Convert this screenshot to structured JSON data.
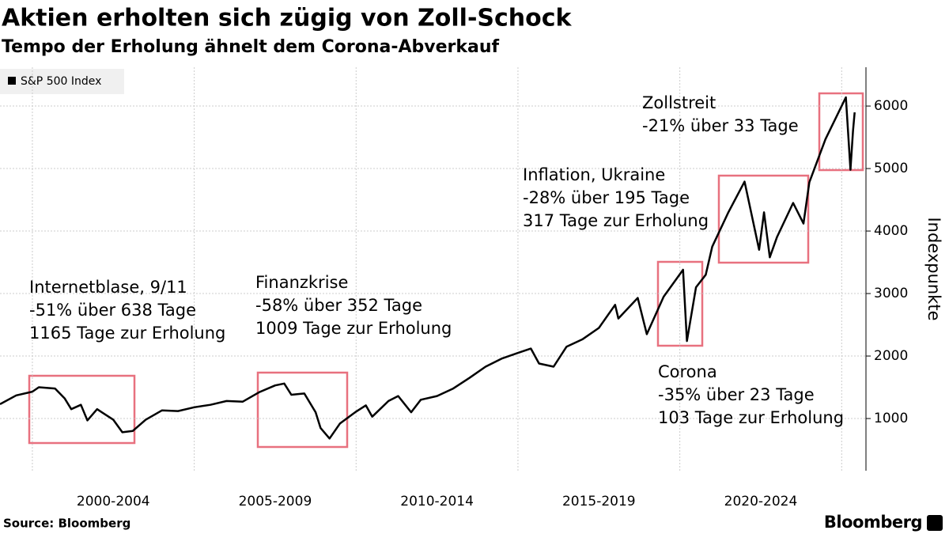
{
  "chart_data": {
    "type": "line",
    "title": "Aktien erholten sich zügig von Zoll-Schock",
    "subtitle": "Tempo der Erholung ähnelt dem Corona-Abverkauf",
    "y_label": "Indexpunkte",
    "source": "Source: Bloomberg",
    "brand": "Bloomberg",
    "legend": "top-left",
    "grid": true,
    "x": [
      1999.0,
      1999.5,
      2000.0,
      2000.2,
      2000.7,
      2001.0,
      2001.2,
      2001.5,
      2001.7,
      2002.0,
      2002.5,
      2002.78,
      2003.1,
      2003.5,
      2004.0,
      2004.5,
      2005.0,
      2005.5,
      2006.0,
      2006.5,
      2007.0,
      2007.5,
      2007.78,
      2008.0,
      2008.4,
      2008.75,
      2008.9,
      2009.18,
      2009.5,
      2010.0,
      2010.3,
      2010.5,
      2011.0,
      2011.3,
      2011.7,
      2012.0,
      2012.5,
      2013.0,
      2013.5,
      2014.0,
      2014.5,
      2015.0,
      2015.4,
      2015.65,
      2016.1,
      2016.5,
      2017.0,
      2017.5,
      2018.0,
      2018.1,
      2018.7,
      2018.98,
      2019.5,
      2020.1,
      2020.22,
      2020.5,
      2020.8,
      2021.0,
      2021.5,
      2022.0,
      2022.45,
      2022.6,
      2022.78,
      2023.0,
      2023.5,
      2023.82,
      2024.0,
      2024.5,
      2025.13,
      2025.27,
      2025.35,
      2025.4
    ],
    "series": [
      {
        "name": "S&P 500 Index",
        "color": "#000000",
        "values": [
          1230,
          1370,
          1430,
          1500,
          1480,
          1320,
          1150,
          1220,
          970,
          1150,
          980,
          780,
          800,
          980,
          1130,
          1120,
          1180,
          1220,
          1280,
          1270,
          1420,
          1530,
          1560,
          1380,
          1400,
          1100,
          850,
          680,
          920,
          1110,
          1210,
          1030,
          1280,
          1360,
          1100,
          1300,
          1360,
          1480,
          1650,
          1830,
          1960,
          2050,
          2120,
          1880,
          1830,
          2150,
          2270,
          2450,
          2820,
          2600,
          2930,
          2350,
          2950,
          3380,
          2240,
          3100,
          3300,
          3750,
          4300,
          4790,
          3700,
          4300,
          3580,
          3900,
          4450,
          4120,
          4780,
          5470,
          6140,
          4980,
          5600,
          5900
        ]
      }
    ],
    "xlim": [
      1999.0,
      2025.75
    ],
    "xgrid": [
      2000,
      2005,
      2010,
      2015,
      2020,
      2025
    ],
    "xticks": [
      {
        "value": 2002.5,
        "label": "2000-2004"
      },
      {
        "value": 2007.5,
        "label": "2005-2009"
      },
      {
        "value": 2012.5,
        "label": "2010-2014"
      },
      {
        "value": 2017.5,
        "label": "2015-2019"
      },
      {
        "value": 2022.5,
        "label": "2020-2024"
      }
    ],
    "ylim": [
      165,
      6621
    ],
    "yticks": [
      1000,
      2000,
      3000,
      4000,
      5000,
      6000
    ],
    "annotations": [
      {
        "lines": [
          "Internetblase, 9/11",
          "-51% über 638 Tage",
          "1165 Tage zur Erholung"
        ]
      },
      {
        "lines": [
          "Finanzkrise",
          "-58% über 352 Tage",
          "1009 Tage zur Erholung"
        ]
      },
      {
        "lines": [
          "Inflation, Ukraine",
          "-28% über 195 Tage",
          "317 Tage zur Erholung"
        ]
      },
      {
        "lines": [
          "Corona",
          "-35% über 23 Tage",
          "103 Tage zur Erholung"
        ]
      },
      {
        "lines": [
          "Zollstreit",
          "-21% über 33 Tage"
        ]
      }
    ]
  }
}
